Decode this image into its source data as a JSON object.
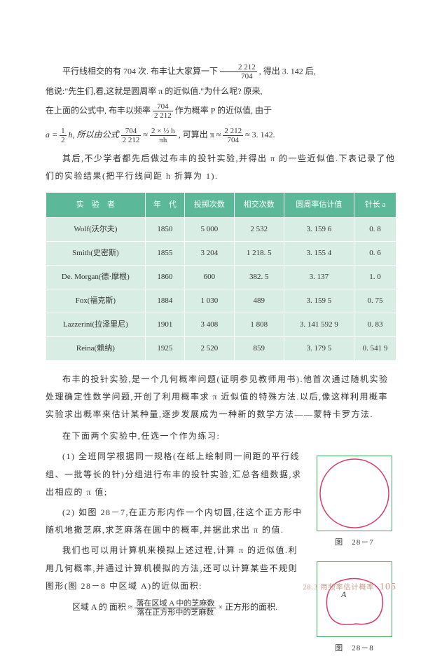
{
  "p1_a": "平行线相交的有 704 次. 布丰让大家算一下",
  "frac1": {
    "num": "2 212",
    "den": "704"
  },
  "p1_b": ", 得出 3. 142 后,",
  "p2": "他说:\"先生们,看,这就是圆周率 π 的近似值.\"为什么呢? 原来,",
  "p3_a": "在上面的公式中, 布丰以频率",
  "frac2": {
    "num": "704",
    "den": "2 212"
  },
  "p3_b": "作为概率 P 的近似值, 由于",
  "formula_a": "a = ",
  "frac3": {
    "num": "1",
    "den": "2"
  },
  "formula_b": "h, 所以由公式",
  "frac4": {
    "num": "704",
    "den": "2 212"
  },
  "formula_c": " ≈ ",
  "frac5a": {
    "num": "2 × ½ h",
    "den": "πh"
  },
  "formula_d": ", 可算出 π ≈ ",
  "frac6": {
    "num": "2 212",
    "den": "704"
  },
  "formula_e": " ≈ 3. 142.",
  "p4": "其后,不少学者都先后做过布丰的投针实验,并得出 π 的一些近似值.下表记录了他们的实验结果(把平行线间距 h 折算为 1).",
  "table": {
    "headers": [
      "实　验　者",
      "年　代",
      "投掷次数",
      "相交次数",
      "圆周率估计值",
      "针长 a"
    ],
    "rows": [
      [
        "Wolf(沃尔夫)",
        "1850",
        "5 000",
        "2 532",
        "3. 159 6",
        "0. 8"
      ],
      [
        "Smith(史密斯)",
        "1855",
        "3 204",
        "1 218. 5",
        "3. 155 4",
        "0. 6"
      ],
      [
        "De. Morgan(德·摩根)",
        "1860",
        "600",
        "382. 5",
        "3. 137",
        "1. 0"
      ],
      [
        "Fox(福克斯)",
        "1884",
        "1 030",
        "489",
        "3. 159 5",
        "0. 75"
      ],
      [
        "Lazzerini(拉泽里尼)",
        "1901",
        "3 408",
        "1 808",
        "3. 141 592 9",
        "0. 83"
      ],
      [
        "Reina(赖纳)",
        "1925",
        "2 520",
        "859",
        "3. 179 5",
        "0. 541 9"
      ]
    ]
  },
  "p5": "布丰的投针实验,是一个几何概率问题(证明参见教师用书).他首次通过随机实验处理确定性数学问题,开创了利用概率求 π 近似值的特殊方法.以后,像这样利用概率实验求出概率来估计某种量,逐步发展成为一种新的数学方法——蒙特卡罗方法.",
  "p6": "在下面两个实验中,任选一个作为练习:",
  "p7": "(1) 全班同学根据同一规格(在纸上绘制同一间距的平行线组、一批等长的针)分组进行布丰的投针实验,汇总各组数据,求出相应的 π 值;",
  "p8": "(2) 如图 28－7,在正方形内作一个内切圆,往这个正方形中随机地撒芝麻,求芝麻落在圆中的概率,并据此求出 π 的值.",
  "p9": "我们也可以用计算机来模拟上述过程,计算 π 的近似值.利用几何概率,并通过计算机模拟的方法,还可以计算某些不规则图形(图 28－8 中区域 A)的近似面积:",
  "formula2_a": "区域 A 的 面积 ≈ ",
  "frac7": {
    "num": "落在区域 A 中的芝麻数",
    "den": "落在正方形中的芝麻数"
  },
  "formula2_b": " × 正方形的面积.",
  "fig1_label": "图　28－7",
  "fig2_label": "图　28－8",
  "shape_a_label": "A",
  "footer_text": "28.3 用频率估计概率",
  "page_num": "105",
  "colors": {
    "th_bg": "#5bb99a",
    "td_bg": "#d8ede4",
    "circle_stroke": "#d93b6b",
    "box_stroke": "#4aa36b",
    "footer_color": "#c9968a"
  }
}
